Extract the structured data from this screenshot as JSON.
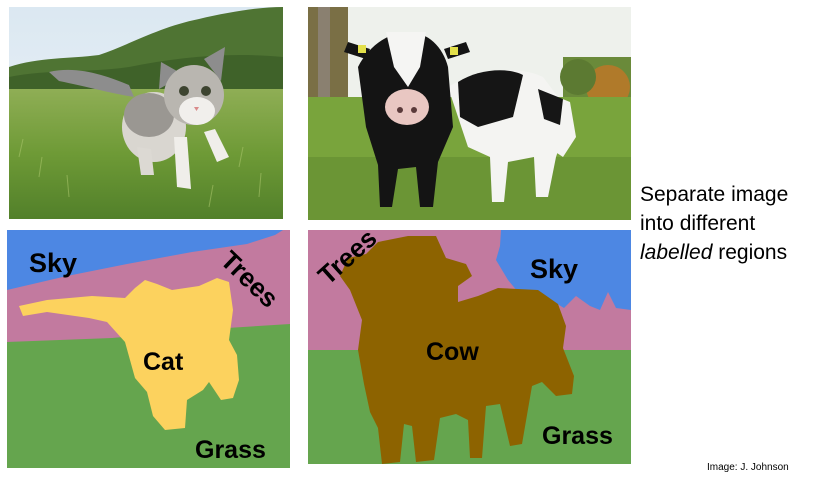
{
  "photos": {
    "cat_photo": {
      "subject": "kitten walking on grass"
    },
    "cow_photo": {
      "subject": "two cows standing in a field"
    }
  },
  "segmentations": {
    "cat_panel": {
      "labels": {
        "sky": "Sky",
        "trees": "Trees",
        "cat": "Cat",
        "grass": "Grass"
      }
    },
    "cow_panel": {
      "labels": {
        "trees": "Trees",
        "sky": "Sky",
        "cow": "Cow",
        "grass": "Grass"
      }
    }
  },
  "colors": {
    "sky": "#4d87e3",
    "trees": "#c27a9f",
    "grass": "#65a54e",
    "cat": "#fcd25e",
    "cow": "#8d6300"
  },
  "caption": {
    "line1": "Separate image",
    "line2": "into different",
    "line3_em": "labelled",
    "line3_rest": " regions"
  },
  "credit": "Image: J. Johnson"
}
